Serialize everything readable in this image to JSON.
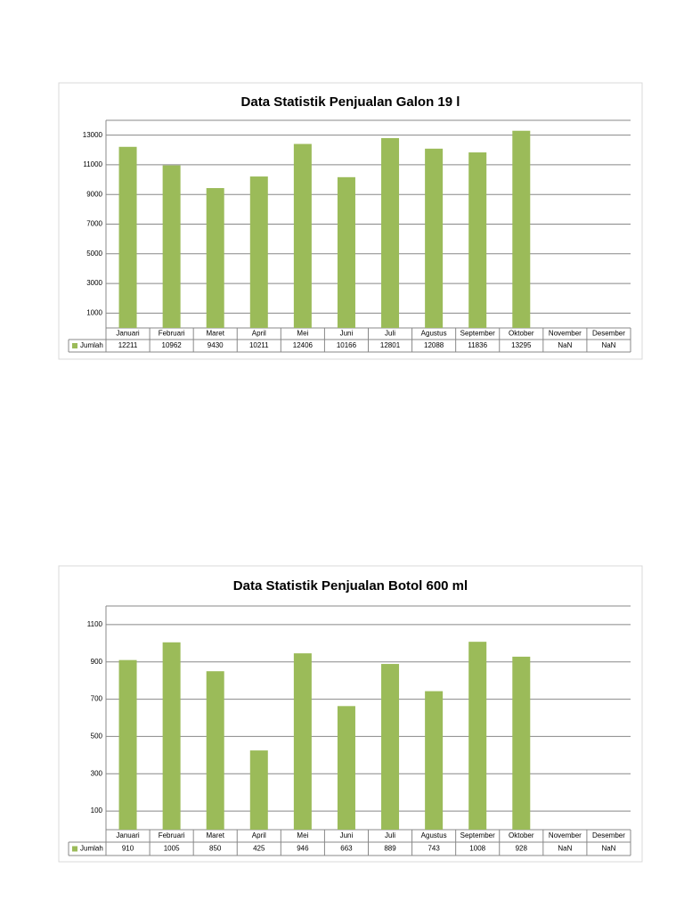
{
  "chart_data": [
    {
      "type": "bar",
      "title": "Data Statistik Penjualan Galon 19 l",
      "categories": [
        "Januari",
        "Februari",
        "Maret",
        "April",
        "Mei",
        "Juni",
        "Juli",
        "Agustus",
        "September",
        "Oktober",
        "November",
        "Desember"
      ],
      "series": [
        {
          "name": "Jumlah",
          "color": "#9bbb59",
          "values": [
            12211,
            10962,
            9430,
            10211,
            12406,
            10166,
            12801,
            12088,
            11836,
            13295,
            null,
            null
          ],
          "value_labels": [
            "12211",
            "10962",
            "9430",
            "10211",
            "12406",
            "10166",
            "12801",
            "12088",
            "11836",
            "13295",
            "NaN",
            "NaN"
          ]
        }
      ],
      "ylim": [
        0,
        14000
      ],
      "yticks": [
        1000,
        3000,
        5000,
        7000,
        9000,
        11000,
        13000
      ],
      "grid": true
    },
    {
      "type": "bar",
      "title": "Data Statistik Penjualan Botol 600 ml",
      "categories": [
        "Januari",
        "Februari",
        "Maret",
        "April",
        "Mei",
        "Juni",
        "Juli",
        "Agustus",
        "September",
        "Oktober",
        "November",
        "Desember"
      ],
      "series": [
        {
          "name": "Jumlah",
          "color": "#9bbb59",
          "values": [
            910,
            1005,
            850,
            425,
            946,
            663,
            889,
            743,
            1008,
            928,
            null,
            null
          ],
          "value_labels": [
            "910",
            "1005",
            "850",
            "425",
            "946",
            "663",
            "889",
            "743",
            "1008",
            "928",
            "NaN",
            "NaN"
          ]
        }
      ],
      "ylim": [
        0,
        1200
      ],
      "yticks": [
        100,
        300,
        500,
        700,
        900,
        1100
      ],
      "grid": true
    }
  ]
}
